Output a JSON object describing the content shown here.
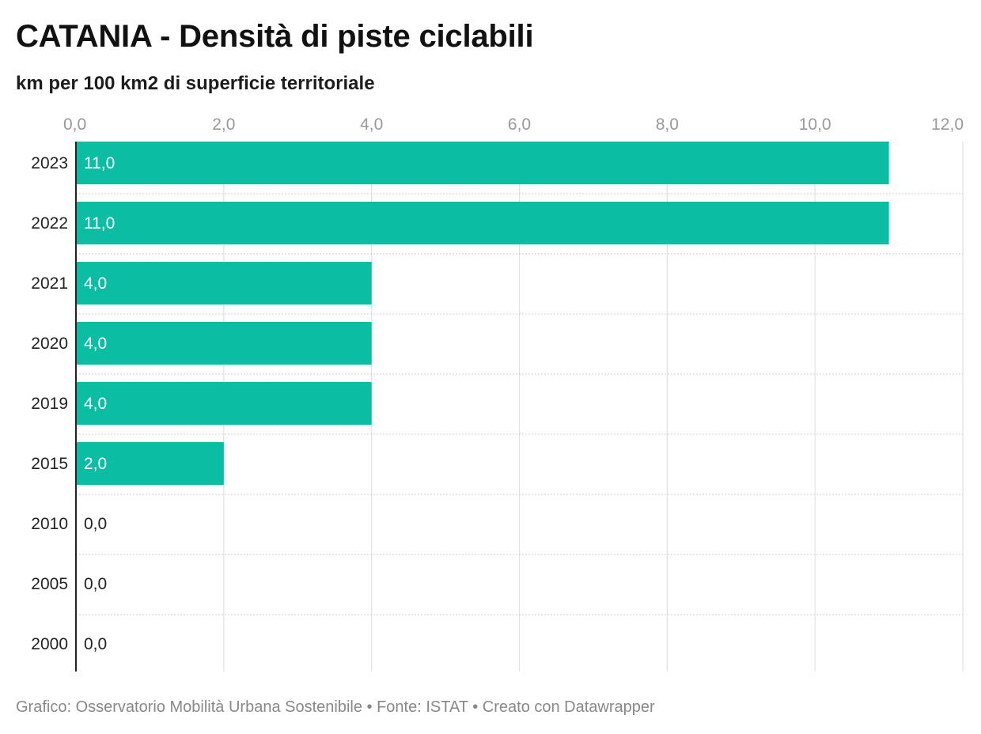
{
  "chart_data": {
    "type": "bar",
    "orientation": "horizontal",
    "title": "CATANIA - Densità di piste ciclabili",
    "subtitle": "km per 100 km2 di superficie territoriale",
    "categories": [
      "2023",
      "2022",
      "2021",
      "2020",
      "2019",
      "2015",
      "2010",
      "2005",
      "2000"
    ],
    "values": [
      11.0,
      11.0,
      4.0,
      4.0,
      4.0,
      2.0,
      0.0,
      0.0,
      0.0
    ],
    "value_labels": [
      "11,0",
      "11,0",
      "4,0",
      "4,0",
      "4,0",
      "2,0",
      "0,0",
      "0,0",
      "0,0"
    ],
    "x_ticks": [
      0,
      2,
      4,
      6,
      8,
      10,
      12
    ],
    "x_tick_labels": [
      "0,0",
      "2,0",
      "4,0",
      "6,0",
      "8,0",
      "10,0",
      "12,0"
    ],
    "xlim": [
      0,
      12
    ],
    "axis_position": "top",
    "grid": true,
    "bar_color": "#0bbda2",
    "label_color_inside": "#ffffff",
    "label_color_outside": "#222222"
  },
  "footer": "Grafico: Osservatorio Mobilità Urbana Sostenibile • Fonte: ISTAT • Creato con Datawrapper"
}
